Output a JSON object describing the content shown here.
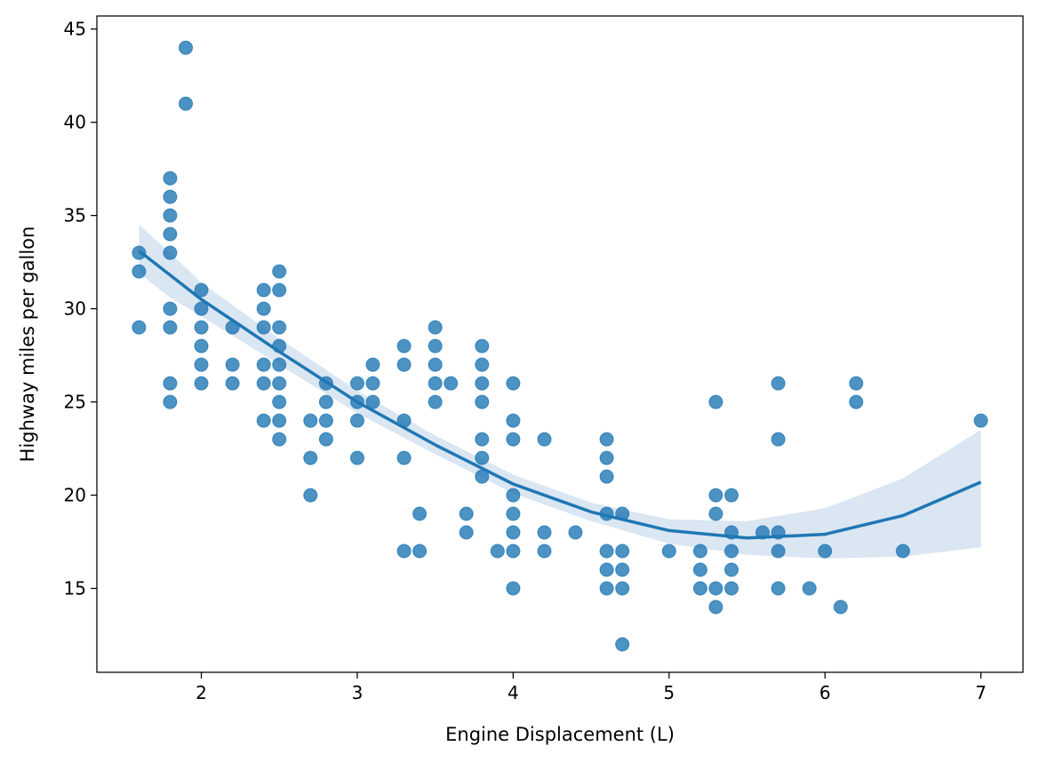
{
  "chart_data": {
    "type": "scatter",
    "title": "",
    "xlabel": "Engine Displacement (L)",
    "ylabel": "Highway miles per gallon",
    "xlim": [
      1.33,
      7.27
    ],
    "ylim": [
      10.5,
      45.7
    ],
    "xticks": [
      2,
      3,
      4,
      5,
      6,
      7
    ],
    "yticks": [
      15,
      20,
      25,
      30,
      35,
      40,
      45
    ],
    "grid": false,
    "point_color": "#1f77b4",
    "fit_color": "#1f77b4",
    "band_color": "#dae6f2",
    "points": [
      [
        1.6,
        33
      ],
      [
        1.6,
        32
      ],
      [
        1.6,
        29
      ],
      [
        1.8,
        37
      ],
      [
        1.8,
        36
      ],
      [
        1.8,
        35
      ],
      [
        1.8,
        34
      ],
      [
        1.8,
        33
      ],
      [
        1.8,
        30
      ],
      [
        1.8,
        29
      ],
      [
        1.8,
        26
      ],
      [
        1.8,
        25
      ],
      [
        1.9,
        44
      ],
      [
        1.9,
        41
      ],
      [
        2.0,
        31
      ],
      [
        2.0,
        30
      ],
      [
        2.0,
        29
      ],
      [
        2.0,
        28
      ],
      [
        2.0,
        27
      ],
      [
        2.0,
        26
      ],
      [
        2.2,
        29
      ],
      [
        2.2,
        27
      ],
      [
        2.2,
        26
      ],
      [
        2.4,
        31
      ],
      [
        2.4,
        30
      ],
      [
        2.4,
        29
      ],
      [
        2.4,
        27
      ],
      [
        2.4,
        26
      ],
      [
        2.4,
        24
      ],
      [
        2.5,
        32
      ],
      [
        2.5,
        31
      ],
      [
        2.5,
        29
      ],
      [
        2.5,
        28
      ],
      [
        2.5,
        27
      ],
      [
        2.5,
        26
      ],
      [
        2.5,
        25
      ],
      [
        2.5,
        24
      ],
      [
        2.5,
        23
      ],
      [
        2.7,
        24
      ],
      [
        2.7,
        22
      ],
      [
        2.7,
        20
      ],
      [
        2.8,
        26
      ],
      [
        2.8,
        25
      ],
      [
        2.8,
        24
      ],
      [
        2.8,
        23
      ],
      [
        3.0,
        26
      ],
      [
        3.0,
        25
      ],
      [
        3.0,
        24
      ],
      [
        3.0,
        22
      ],
      [
        3.1,
        27
      ],
      [
        3.1,
        26
      ],
      [
        3.1,
        25
      ],
      [
        3.3,
        28
      ],
      [
        3.3,
        27
      ],
      [
        3.3,
        24
      ],
      [
        3.3,
        22
      ],
      [
        3.3,
        17
      ],
      [
        3.4,
        19
      ],
      [
        3.4,
        17
      ],
      [
        3.5,
        29
      ],
      [
        3.5,
        28
      ],
      [
        3.5,
        27
      ],
      [
        3.5,
        26
      ],
      [
        3.5,
        25
      ],
      [
        3.6,
        26
      ],
      [
        3.7,
        19
      ],
      [
        3.7,
        18
      ],
      [
        3.8,
        28
      ],
      [
        3.8,
        27
      ],
      [
        3.8,
        26
      ],
      [
        3.8,
        25
      ],
      [
        3.8,
        23
      ],
      [
        3.8,
        22
      ],
      [
        3.8,
        21
      ],
      [
        3.9,
        17
      ],
      [
        4.0,
        26
      ],
      [
        4.0,
        24
      ],
      [
        4.0,
        23
      ],
      [
        4.0,
        20
      ],
      [
        4.0,
        19
      ],
      [
        4.0,
        18
      ],
      [
        4.0,
        17
      ],
      [
        4.0,
        15
      ],
      [
        4.2,
        23
      ],
      [
        4.2,
        18
      ],
      [
        4.2,
        17
      ],
      [
        4.4,
        18
      ],
      [
        4.6,
        23
      ],
      [
        4.6,
        22
      ],
      [
        4.6,
        21
      ],
      [
        4.6,
        19
      ],
      [
        4.6,
        17
      ],
      [
        4.6,
        16
      ],
      [
        4.6,
        15
      ],
      [
        4.7,
        19
      ],
      [
        4.7,
        17
      ],
      [
        4.7,
        16
      ],
      [
        4.7,
        15
      ],
      [
        4.7,
        12
      ],
      [
        5.0,
        17
      ],
      [
        5.2,
        17
      ],
      [
        5.2,
        16
      ],
      [
        5.2,
        15
      ],
      [
        5.3,
        25
      ],
      [
        5.3,
        20
      ],
      [
        5.3,
        19
      ],
      [
        5.3,
        15
      ],
      [
        5.3,
        14
      ],
      [
        5.4,
        20
      ],
      [
        5.4,
        18
      ],
      [
        5.4,
        17
      ],
      [
        5.4,
        16
      ],
      [
        5.4,
        15
      ],
      [
        5.6,
        18
      ],
      [
        5.7,
        26
      ],
      [
        5.7,
        23
      ],
      [
        5.7,
        18
      ],
      [
        5.7,
        17
      ],
      [
        5.7,
        15
      ],
      [
        5.9,
        15
      ],
      [
        6.0,
        17
      ],
      [
        6.1,
        14
      ],
      [
        6.2,
        26
      ],
      [
        6.2,
        25
      ],
      [
        6.5,
        17
      ],
      [
        7.0,
        24
      ]
    ],
    "fit": {
      "x": [
        1.6,
        1.8,
        2.0,
        2.5,
        3.0,
        3.5,
        4.0,
        4.5,
        5.0,
        5.5,
        6.0,
        6.5,
        7.0
      ],
      "y": [
        33.1,
        31.8,
        30.5,
        27.7,
        25.0,
        22.7,
        20.6,
        19.1,
        18.1,
        17.7,
        17.9,
        18.9,
        20.7
      ],
      "upper": [
        34.5,
        33.0,
        31.4,
        28.4,
        25.6,
        23.2,
        21.1,
        19.6,
        18.7,
        18.6,
        19.3,
        20.9,
        23.5
      ],
      "lower": [
        31.9,
        30.6,
        29.6,
        27.0,
        24.4,
        22.2,
        20.1,
        18.6,
        17.4,
        16.8,
        16.6,
        16.7,
        17.2
      ]
    }
  }
}
